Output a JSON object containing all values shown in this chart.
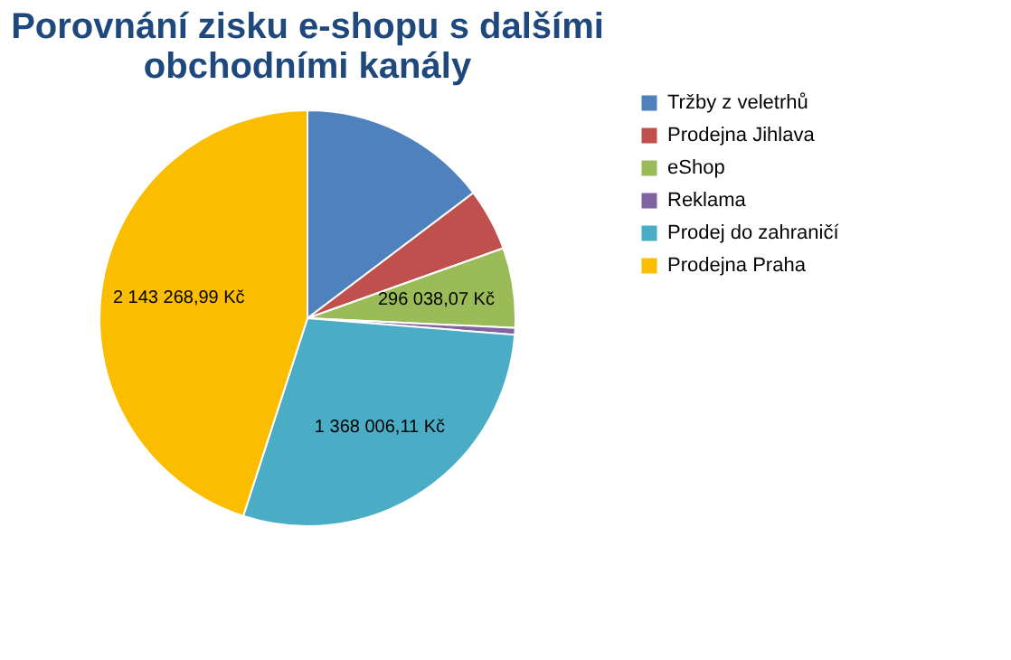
{
  "chart_data": {
    "type": "pie",
    "title": "Porovnání zisku e-shopu s dalšími obchodními kanály",
    "categories": [
      "Tržby z veletrhů",
      "Prodejna Jihlava",
      "eShop",
      "Reklama",
      "Prodej do zahraničí",
      "Prodejna Praha"
    ],
    "values": [
      700000,
      230000,
      296038.07,
      25000,
      1368006.11,
      2143268.99
    ],
    "value_labels": [
      null,
      null,
      "296 038,07 Kč",
      null,
      "1 368 006,11 Kč",
      "2 143 268,99 Kč"
    ],
    "colors": [
      "#4f81bd",
      "#c0504d",
      "#9bbb59",
      "#8064a2",
      "#4bacc6",
      "#fbbd00"
    ],
    "legend": "right"
  }
}
